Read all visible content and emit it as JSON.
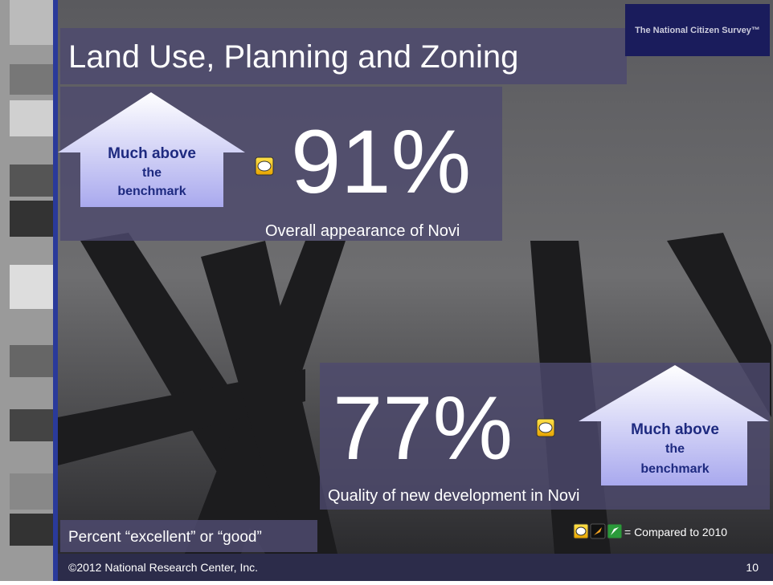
{
  "title": "Land Use, Planning and Zoning",
  "logo": "The National Citizen Survey™",
  "stats": [
    {
      "value": "91%",
      "description": "Overall appearance of Novi",
      "benchmark": [
        "Much above",
        "the",
        "benchmark"
      ]
    },
    {
      "value": "77%",
      "description": "Quality of new development in Novi",
      "benchmark": [
        "Much above",
        "the",
        "benchmark"
      ]
    }
  ],
  "footnote": "Percent “excellent” or “good”",
  "legend": "= Compared to 2010",
  "footer": "©2012 National Research Center, Inc.",
  "page_number": "10"
}
